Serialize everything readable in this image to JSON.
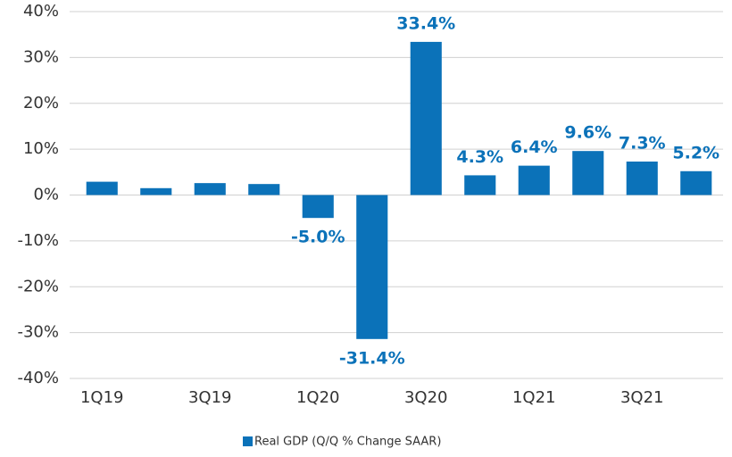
{
  "chart_data": {
    "type": "bar",
    "categories": [
      "1Q19",
      null,
      "3Q19",
      null,
      "1Q20",
      null,
      "3Q20",
      null,
      "1Q21",
      null,
      "3Q21",
      null
    ],
    "series": [
      {
        "name": "Real GDP (Q/Q % Change SAAR)",
        "color": "#0b72b9",
        "values": [
          2.9,
          1.5,
          2.6,
          2.4,
          -5.0,
          -31.4,
          33.4,
          4.3,
          6.4,
          9.6,
          7.3,
          5.2
        ],
        "value_labels": [
          null,
          null,
          null,
          null,
          "-5.0%",
          "-31.4%",
          "33.4%",
          "4.3%",
          "6.4%",
          "9.6%",
          "7.3%",
          "5.2%"
        ]
      }
    ],
    "ylim": [
      -40,
      40
    ],
    "yticks": [
      {
        "value": -40,
        "label": "-40%"
      },
      {
        "value": -30,
        "label": "-30%"
      },
      {
        "value": -20,
        "label": "-20%"
      },
      {
        "value": -10,
        "label": "-10%"
      },
      {
        "value": 0,
        "label": "0%"
      },
      {
        "value": 10,
        "label": "10%"
      },
      {
        "value": 20,
        "label": "20%"
      },
      {
        "value": 30,
        "label": "30%"
      },
      {
        "value": 40,
        "label": "40%"
      }
    ],
    "grid": true
  }
}
